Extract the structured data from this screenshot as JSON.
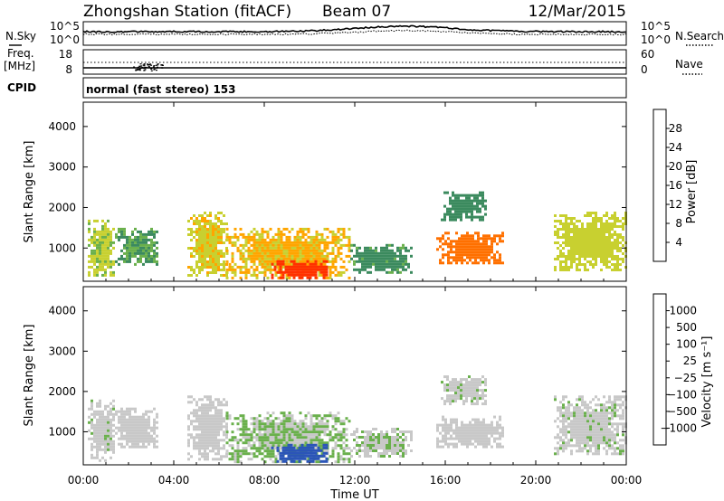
{
  "header": {
    "station": "Zhongshan Station (fitACF)",
    "beam": "Beam 07",
    "date": "12/Mar/2015"
  },
  "status_panel": {
    "nsky_label": "N.Sky",
    "nsearch_label": "N.Search",
    "sky_ticks": [
      "10^5",
      "10^0"
    ],
    "search_ticks": [
      "10^5",
      "10^0"
    ],
    "freq_label_1": "Freq.",
    "freq_label_2": "[MHz]",
    "freq_ticks": [
      "18",
      "8"
    ],
    "nave_label": "Nave",
    "nave_ticks": [
      "60",
      "0"
    ],
    "cpid_label": "CPID",
    "cpid_text": "normal (fast stereo) 153"
  },
  "colors": {
    "power_scale": [
      "#0000ff",
      "#2b55b8",
      "#3b8a5e",
      "#6ab04c",
      "#c8d030",
      "#ffa500",
      "#ff7000",
      "#ff3000",
      "#e00000"
    ],
    "velocity_scale": [
      "#e00000",
      "#ff7000",
      "#ffa500",
      "#c8c8c8",
      "#c8c8c8",
      "#6ab04c",
      "#3b8a5e",
      "#2b55b8",
      "#1a2ec8"
    ]
  },
  "chart_data": [
    {
      "type": "heatmap",
      "panel": "power",
      "ylabel": "Slant Range [km]",
      "yticks": [
        "1000",
        "2000",
        "3000",
        "4000"
      ],
      "ylim": [
        180,
        4600
      ],
      "colorbar_label": "Power [dB]",
      "colorbar_ticks": [
        "4",
        "8",
        "12",
        "16",
        "20",
        "24",
        "28"
      ],
      "color_range": [
        0,
        30
      ],
      "echo_regions": [
        {
          "t": [
            0.2,
            1.4
          ],
          "r": [
            300,
            1700
          ],
          "v": 14
        },
        {
          "t": [
            1.4,
            3.3
          ],
          "r": [
            600,
            1500
          ],
          "v": 10
        },
        {
          "t": [
            4.6,
            6.3
          ],
          "r": [
            300,
            1900
          ],
          "v": 16
        },
        {
          "t": [
            6.3,
            11.8
          ],
          "r": [
            250,
            1500
          ],
          "v": 17
        },
        {
          "t": [
            8.3,
            10.8
          ],
          "r": [
            250,
            700
          ],
          "v": 25
        },
        {
          "t": [
            11.8,
            14.5
          ],
          "r": [
            400,
            1100
          ],
          "v": 9
        },
        {
          "t": [
            15.6,
            18.6
          ],
          "r": [
            600,
            1400
          ],
          "v": 22
        },
        {
          "t": [
            15.8,
            17.8
          ],
          "r": [
            1700,
            2400
          ],
          "v": 8
        },
        {
          "t": [
            20.8,
            24.0
          ],
          "r": [
            450,
            1900
          ],
          "v": 15
        }
      ]
    },
    {
      "type": "heatmap",
      "panel": "velocity",
      "xlabel": "Time UT",
      "ylabel": "Slant Range [km]",
      "yticks": [
        "1000",
        "2000",
        "3000",
        "4000"
      ],
      "ylim": [
        180,
        4600
      ],
      "colorbar_label": "Velocity [m s⁻¹]",
      "colorbar_ticks": [
        "1000",
        "500",
        "100",
        "25",
        "−25",
        "−100",
        "−500",
        "−1000"
      ],
      "color_range": [
        -1200,
        1200
      ],
      "echo_regions": [
        {
          "t": [
            0.2,
            1.4
          ],
          "r": [
            300,
            1800
          ],
          "v": 50
        },
        {
          "t": [
            1.4,
            3.3
          ],
          "r": [
            600,
            1600
          ],
          "v": 0
        },
        {
          "t": [
            4.6,
            6.3
          ],
          "r": [
            300,
            1900
          ],
          "v": -200
        },
        {
          "t": [
            6.3,
            11.8
          ],
          "r": [
            250,
            1500
          ],
          "v": 150
        },
        {
          "t": [
            8.3,
            10.8
          ],
          "r": [
            250,
            700
          ],
          "v": 800
        },
        {
          "t": [
            11.8,
            14.5
          ],
          "r": [
            400,
            1100
          ],
          "v": 100
        },
        {
          "t": [
            15.6,
            18.6
          ],
          "r": [
            600,
            1400
          ],
          "v": -150
        },
        {
          "t": [
            15.8,
            17.8
          ],
          "r": [
            1700,
            2400
          ],
          "v": 60
        },
        {
          "t": [
            20.8,
            24.0
          ],
          "r": [
            450,
            1900
          ],
          "v": 60
        }
      ]
    }
  ],
  "time_axis": {
    "ticks": [
      "00:00",
      "04:00",
      "08:00",
      "12:00",
      "16:00",
      "20:00",
      "00:00"
    ],
    "xlim": [
      0,
      24
    ]
  }
}
